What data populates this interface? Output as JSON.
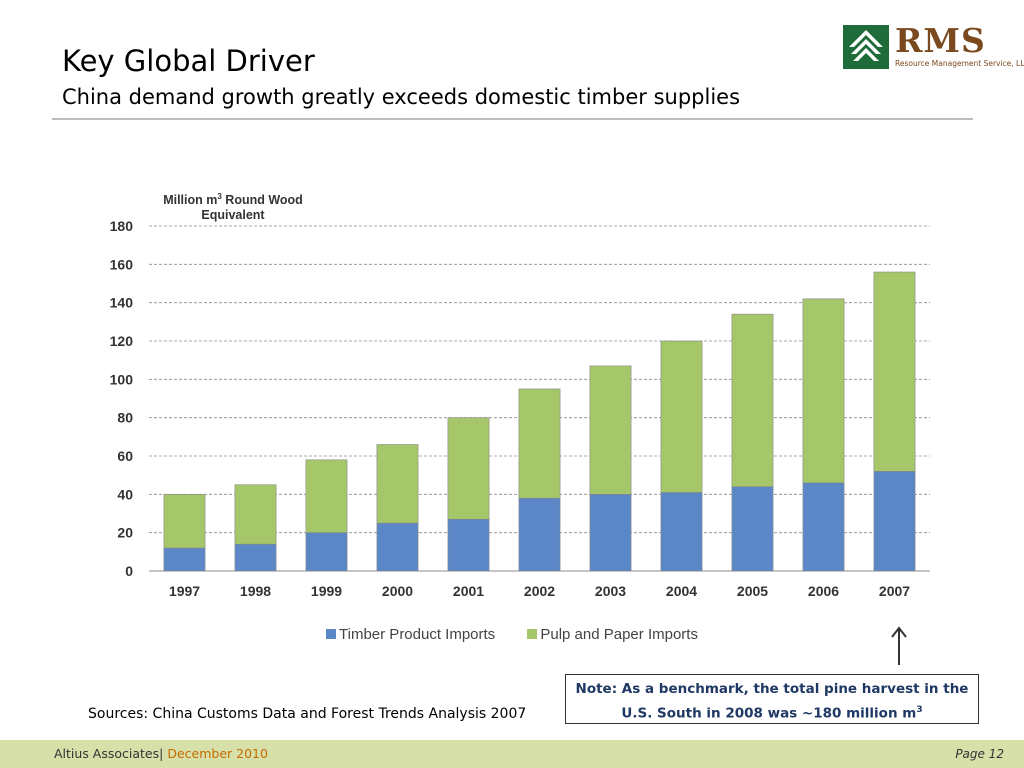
{
  "slide": {
    "title": "Key Global Driver",
    "subtitle": "China demand growth greatly exceeds domestic timber supplies"
  },
  "logo": {
    "name": "RMS",
    "tagline": "Resource Management Service, LLC"
  },
  "chart_data": {
    "type": "bar",
    "stacked": true,
    "ylabel_main": "Million m",
    "ylabel_sup": "3",
    "ylabel_rest": " Round Wood Equivalent",
    "ylim": [
      0,
      180
    ],
    "yticks": [
      "0",
      "20",
      "40",
      "60",
      "80",
      "100",
      "120",
      "140",
      "160",
      "180"
    ],
    "grid": true,
    "legend_position": "bottom",
    "categories": [
      "1997",
      "1998",
      "1999",
      "2000",
      "2001",
      "2002",
      "2003",
      "2004",
      "2005",
      "2006",
      "2007"
    ],
    "series": [
      {
        "name": "Timber Product Imports",
        "color": "#5b87c7",
        "values": [
          12,
          14,
          20,
          25,
          27,
          38,
          40,
          41,
          44,
          46,
          52
        ]
      },
      {
        "name": "Pulp and Paper Imports",
        "color": "#a5c76a",
        "values": [
          28,
          31,
          38,
          41,
          53,
          57,
          67,
          79,
          90,
          96,
          104
        ]
      }
    ]
  },
  "note": {
    "line1": "Note:  As a benchmark, the total pine harvest in the",
    "line2": "U.S. South in 2008 was ~180 million m",
    "line2_sup": "3"
  },
  "sources": "Sources: China Customs Data and Forest Trends Analysis 2007",
  "footer": {
    "company": "Altius Associates",
    "separator": "|",
    "date": "December 2010",
    "page": "Page 12"
  }
}
